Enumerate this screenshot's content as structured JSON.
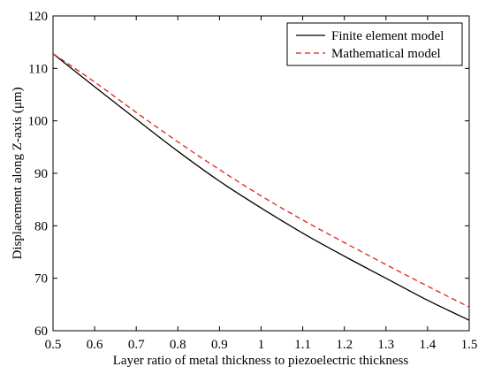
{
  "chart_data": {
    "type": "line",
    "title": "",
    "xlabel": "Layer ratio of metal thickness to piezoelectric thickness",
    "ylabel": "Displacement along Z-axis (μm)",
    "xlim": [
      0.5,
      1.5
    ],
    "ylim": [
      60,
      120
    ],
    "xticks": [
      "0.5",
      "0.6",
      "0.7",
      "0.8",
      "0.9",
      "1",
      "1.1",
      "1.2",
      "1.3",
      "1.4",
      "1.5"
    ],
    "yticks": [
      "60",
      "70",
      "80",
      "90",
      "100",
      "110",
      "120"
    ],
    "grid": false,
    "legend_position": "top-right",
    "x": [
      0.5,
      0.6,
      0.7,
      0.8,
      0.9,
      1.0,
      1.1,
      1.2,
      1.3,
      1.4,
      1.5
    ],
    "series": [
      {
        "name": "Finite element model",
        "color": "#000000",
        "style": "solid",
        "values": [
          112.8,
          106.5,
          100.3,
          94.2,
          88.5,
          83.4,
          78.6,
          74.2,
          70.0,
          65.8,
          62.0
        ]
      },
      {
        "name": "Mathematical model",
        "color": "#e0201b",
        "style": "dashed",
        "values": [
          112.8,
          107.4,
          101.6,
          96.0,
          90.7,
          85.7,
          81.1,
          76.8,
          72.6,
          68.5,
          64.5
        ]
      }
    ]
  }
}
